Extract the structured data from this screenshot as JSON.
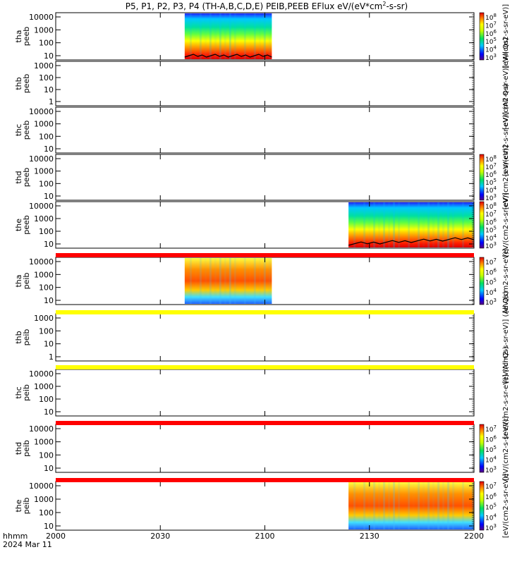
{
  "chart_data": {
    "type": "heatmap",
    "title": "P5, P1, P2, P3, P4 (TH-A,B,C,D,E) PEIB,PEEB EFlux eV/(eV*cm",
    "title_sup": "2",
    "title_tail": "-s-sr)",
    "footer": {
      "label_unit": "hhmm",
      "label_date": "2024 Mar 11"
    },
    "x_ticks": [
      "2000",
      "2030",
      "2100",
      "2130",
      "2200"
    ],
    "x_range_minutes": [
      0,
      120
    ],
    "panels": [
      {
        "probe": "tha",
        "product": "peeb",
        "yticks": [
          "10000",
          "1000",
          "100",
          "10"
        ],
        "ylim": [
          5,
          30000
        ],
        "data": [
          {
            "t0": 37,
            "t1": 62,
            "style": "electron"
          }
        ],
        "colorbar": {
          "ticks": [
            "10",
            "10",
            "10",
            "10",
            "10",
            "10"
          ],
          "exps": [
            "8",
            "7",
            "6",
            "5",
            "4",
            "3"
          ],
          "unit": "[eV/(cm2-s-sr-eV)]"
        }
      },
      {
        "probe": "thb",
        "product": "peeb",
        "yticks": [
          "1000",
          "100",
          "10",
          "1"
        ],
        "ylim": [
          0.5,
          1500
        ],
        "data": [],
        "colorbar": {
          "ticks": [],
          "exps": [],
          "unit": "[eV/(cm2-s-sr-eV)] (All Qs)"
        }
      },
      {
        "probe": "thc",
        "product": "peeb",
        "yticks": [
          "10000",
          "1000",
          "100",
          "10"
        ],
        "ylim": [
          5,
          30000
        ],
        "data": [],
        "colorbar": {
          "ticks": [],
          "exps": [],
          "unit": "[eV/(cm2-s-sr-eV)] (All Qs)"
        }
      },
      {
        "probe": "thd",
        "product": "peeb",
        "yticks": [
          "10000",
          "1000",
          "100",
          "10"
        ],
        "ylim": [
          5,
          30000
        ],
        "data": [],
        "colorbar": {
          "ticks": [
            "10",
            "10",
            "10",
            "10",
            "10",
            "10"
          ],
          "exps": [
            "8",
            "7",
            "6",
            "5",
            "4",
            "3"
          ],
          "unit": "[eV/(cm2-s-sr-eV)]"
        }
      },
      {
        "probe": "the",
        "product": "peeb",
        "yticks": [
          "10000",
          "1000",
          "100",
          "10"
        ],
        "ylim": [
          5,
          30000
        ],
        "data": [
          {
            "t0": 84,
            "t1": 120,
            "style": "electron"
          }
        ],
        "colorbar": {
          "ticks": [
            "10",
            "10",
            "10",
            "10",
            "10",
            "10"
          ],
          "exps": [
            "8",
            "7",
            "6",
            "5",
            "4",
            "3"
          ],
          "unit": "[eV/(cm2-s-sr-eV)]"
        }
      },
      {
        "probe": "tha",
        "product": "peib",
        "yticks": [
          "10000",
          "1000",
          "100",
          "10"
        ],
        "ylim": [
          5,
          30000
        ],
        "data": [
          {
            "t0": 37,
            "t1": 62,
            "style": "ion"
          }
        ],
        "colorbar": {
          "ticks": [
            "10",
            "10",
            "10",
            "10",
            "10"
          ],
          "exps": [
            "7",
            "6",
            "5",
            "4",
            "3"
          ],
          "unit": "[eV/(cm2-s-sr-eV)]"
        }
      },
      {
        "probe": "thb",
        "product": "peib",
        "yticks": [
          "1000",
          "100",
          "10",
          "1"
        ],
        "ylim": [
          0.5,
          1500
        ],
        "data": [],
        "colorbar": {
          "ticks": [],
          "exps": [],
          "unit": "[eV/(cm2-s-sr-eV)] (All Qs)"
        }
      },
      {
        "probe": "thc",
        "product": "peib",
        "yticks": [
          "10000",
          "1000",
          "100",
          "10"
        ],
        "ylim": [
          5,
          30000
        ],
        "data": [],
        "colorbar": {
          "ticks": [],
          "exps": [],
          "unit": "[eV/(cm2-s-sr-eV)] (All Qs)"
        }
      },
      {
        "probe": "thd",
        "product": "peib",
        "yticks": [
          "10000",
          "1000",
          "100",
          "10"
        ],
        "ylim": [
          5,
          30000
        ],
        "data": [],
        "colorbar": {
          "ticks": [
            "10",
            "10",
            "10",
            "10",
            "10"
          ],
          "exps": [
            "7",
            "6",
            "5",
            "4",
            "3"
          ],
          "unit": "[eV/(cm2-s-sr-eV)]"
        }
      },
      {
        "probe": "the",
        "product": "peib",
        "yticks": [
          "10000",
          "1000",
          "100",
          "10"
        ],
        "ylim": [
          5,
          30000
        ],
        "data": [
          {
            "t0": 84,
            "t1": 120,
            "style": "ion"
          }
        ],
        "colorbar": {
          "ticks": [
            "10",
            "10",
            "10",
            "10",
            "10"
          ],
          "exps": [
            "7",
            "6",
            "5",
            "4",
            "3"
          ],
          "unit": "[eV/(cm2-s-sr-eV)]"
        }
      }
    ],
    "status_bars": [
      {
        "after_panel": 4,
        "color": "#ff0000"
      },
      {
        "after_panel": 5,
        "color": "#ffff00"
      },
      {
        "after_panel": 6,
        "color": "#ffff00"
      },
      {
        "after_panel": 7,
        "color": "#ff0000"
      },
      {
        "after_panel": 8,
        "color": "#ff0000"
      }
    ]
  }
}
